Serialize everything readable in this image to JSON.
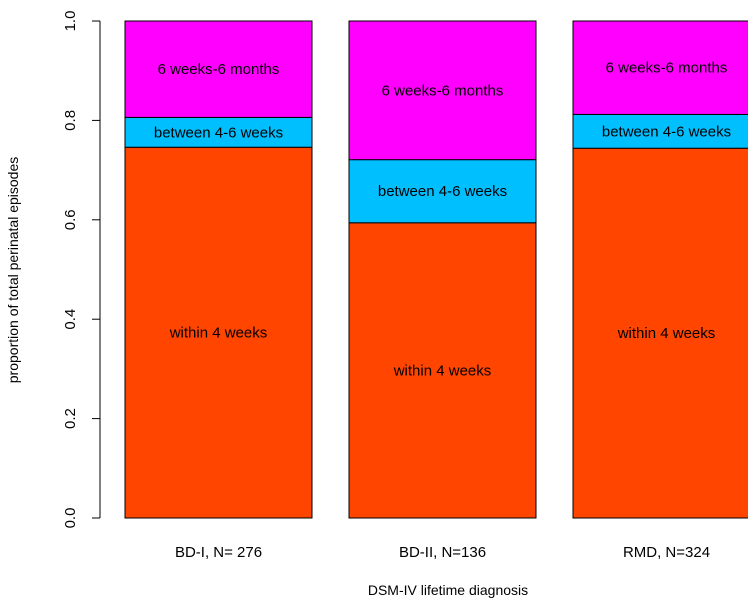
{
  "chart_data": {
    "type": "bar",
    "stacked": true,
    "title": "",
    "xlabel": "DSM-IV lifetime diagnosis",
    "ylabel": "proportion of total perinatal episodes",
    "ylim": [
      0,
      1
    ],
    "yticks": [
      "0.0",
      "0.2",
      "0.4",
      "0.6",
      "0.8",
      "1.0"
    ],
    "grid": false,
    "categories": [
      "BD-I, N= 276",
      "BD-II, N=136",
      "RMD, N=324"
    ],
    "series": [
      {
        "name": "within 4 weeks",
        "color": "#ff4500",
        "values": [
          0.746,
          0.594,
          0.744
        ]
      },
      {
        "name": "between 4-6 weeks",
        "color": "#00bfff",
        "values": [
          0.06,
          0.127,
          0.068
        ]
      },
      {
        "name": "6 weeks-6 months",
        "color": "#ff00ff",
        "values": [
          0.194,
          0.279,
          0.188
        ]
      }
    ]
  }
}
